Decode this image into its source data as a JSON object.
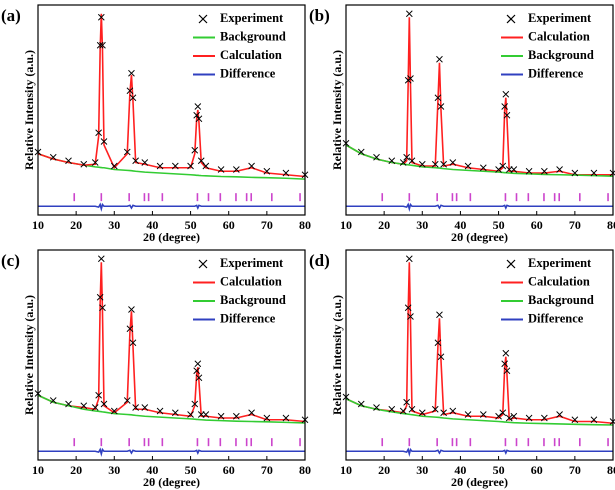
{
  "chart_data": [
    {
      "type": "line",
      "label": "(a)",
      "xlabel": "2θ (degree)",
      "ylabel": "Relative Intensity (a.u.)",
      "xlim": [
        10,
        80
      ],
      "xticks": [
        10,
        20,
        30,
        40,
        50,
        60,
        70,
        80
      ],
      "ylim": [
        -15,
        105
      ],
      "legend": "upper right",
      "x": [
        10,
        14,
        18,
        22,
        25,
        25.9,
        26.3,
        26.6,
        26.9,
        27.3,
        30,
        33.4,
        34.1,
        34.5,
        34.9,
        35.6,
        38,
        42,
        46,
        50,
        51.1,
        51.6,
        51.9,
        52.2,
        52.8,
        54,
        58,
        62,
        66,
        70,
        75,
        80
      ],
      "series": [
        {
          "name": "Experiment",
          "color": "#000000",
          "marker": "x",
          "values": [
            21,
            18,
            16,
            14,
            15,
            32,
            82,
            98,
            82,
            27,
            13,
            21,
            56,
            66,
            52,
            16,
            15,
            13,
            13,
            13,
            22,
            42,
            47,
            40,
            16,
            13,
            11,
            11,
            13,
            10,
            9,
            8
          ]
        },
        {
          "name": "Background",
          "color": "#33cc33",
          "values": [
            20,
            17,
            15,
            13.5,
            12.5,
            12.3,
            12.2,
            12.1,
            12,
            12,
            11,
            10.5,
            10.4,
            10.3,
            10.2,
            10,
            9.5,
            9,
            8.5,
            8,
            7.8,
            7.7,
            7.7,
            7.6,
            7.5,
            7.4,
            7,
            6.8,
            6.5,
            6.3,
            6,
            5.5
          ]
        },
        {
          "name": "Calculation",
          "color": "#ff2020",
          "values": [
            20,
            17,
            15,
            13.5,
            14,
            30,
            80,
            100,
            80,
            25,
            12,
            20,
            55,
            65,
            50,
            15,
            14,
            12,
            12,
            12,
            20,
            40,
            45,
            38,
            15,
            12,
            10,
            10,
            12,
            9,
            8,
            7
          ]
        },
        {
          "name": "Difference",
          "color": "#3040c0",
          "values": [
            -10,
            -10,
            -10,
            -10,
            -10,
            -10.5,
            -9,
            -11.5,
            -9,
            -10,
            -10,
            -10,
            -9.5,
            -11,
            -9.5,
            -10,
            -10,
            -10,
            -10,
            -10,
            -10,
            -9.5,
            -11,
            -9.5,
            -10,
            -10,
            -10,
            -10,
            -10,
            -10,
            -10,
            -10
          ]
        }
      ],
      "reflections": [
        19.5,
        26.6,
        33.9,
        37.9,
        39.0,
        42.6,
        51.8,
        54.7,
        57.8,
        61.9,
        64.7,
        65.9,
        71.3,
        78.7
      ],
      "reflection_color": "#cc44cc"
    },
    {
      "type": "line",
      "label": "(b)",
      "xlabel": "2θ (degree)",
      "ylabel": "Relative Intensity (a.u.)",
      "xlim": [
        10,
        80
      ],
      "xticks": [
        10,
        20,
        30,
        40,
        50,
        60,
        70,
        80
      ],
      "ylim": [
        -15,
        105
      ],
      "legend": "upper right",
      "x": [
        10,
        14,
        18,
        22,
        25,
        25.9,
        26.3,
        26.6,
        26.9,
        27.3,
        30,
        33.4,
        34.1,
        34.5,
        34.9,
        35.6,
        38,
        42,
        46,
        50,
        51.1,
        51.6,
        51.9,
        52.2,
        52.8,
        54,
        58,
        62,
        66,
        70,
        75,
        80
      ],
      "series": [
        {
          "name": "Experiment",
          "color": "#000000",
          "marker": "x",
          "values": [
            26,
            21,
            18,
            16,
            15,
            18,
            62,
            100,
            63,
            16,
            14,
            14,
            52,
            74,
            47,
            14,
            15,
            13,
            12,
            11,
            13,
            47,
            54,
            42,
            11,
            11,
            10,
            10,
            11,
            9,
            9,
            9
          ]
        },
        {
          "name": "Calculation",
          "color": "#ff2020",
          "values": [
            25,
            20,
            17,
            15,
            14,
            16,
            60,
            98,
            60,
            15,
            13,
            13,
            50,
            72,
            45,
            13,
            14,
            12,
            11,
            10,
            12,
            45,
            52,
            40,
            10,
            10,
            9,
            9,
            10,
            8,
            8,
            8
          ]
        },
        {
          "name": "Background",
          "color": "#33cc33",
          "values": [
            25,
            20,
            17,
            15,
            14,
            13.8,
            13.7,
            13.6,
            13.5,
            13.4,
            12.5,
            12,
            11.9,
            11.8,
            11.7,
            11.5,
            11,
            10.5,
            10,
            9.5,
            9.3,
            9.2,
            9.2,
            9.1,
            9,
            8.8,
            8.5,
            8.2,
            8,
            7.8,
            7.5,
            7.2
          ]
        },
        {
          "name": "Difference",
          "color": "#3040c0",
          "values": [
            -10,
            -10,
            -10,
            -10,
            -10,
            -10.5,
            -9,
            -11.5,
            -9,
            -10,
            -10,
            -10,
            -9.5,
            -11,
            -9.5,
            -10,
            -10,
            -10,
            -10,
            -10,
            -10,
            -9.5,
            -11,
            -9.5,
            -10,
            -10,
            -10,
            -10,
            -10,
            -10,
            -10,
            -10
          ]
        }
      ],
      "reflections": [
        19.5,
        26.6,
        33.9,
        37.9,
        39.0,
        42.6,
        51.8,
        54.7,
        57.8,
        61.9,
        64.7,
        65.9,
        71.3,
        78.7
      ],
      "reflection_color": "#cc44cc"
    },
    {
      "type": "line",
      "label": "(c)",
      "xlabel": "2θ (degree)",
      "ylabel": "Relative Intensity (a.u.)",
      "xlim": [
        10,
        80
      ],
      "xticks": [
        10,
        20,
        30,
        40,
        50,
        60,
        70,
        80
      ],
      "ylim": [
        -15,
        105
      ],
      "legend": "upper right",
      "x": [
        10,
        14,
        18,
        22,
        25,
        25.9,
        26.3,
        26.6,
        26.9,
        27.3,
        30,
        33.4,
        34.1,
        34.5,
        34.9,
        35.6,
        38,
        42,
        46,
        50,
        51.1,
        51.6,
        51.9,
        52.2,
        52.8,
        54,
        58,
        62,
        66,
        70,
        75,
        80
      ],
      "series": [
        {
          "name": "Experiment",
          "color": "#000000",
          "marker": "x",
          "values": [
            23,
            19,
            17,
            16,
            15,
            22,
            78,
            100,
            72,
            17,
            13,
            19,
            60,
            71,
            52,
            15,
            15,
            13,
            12,
            11,
            17,
            36,
            40,
            32,
            11,
            11,
            10,
            10,
            12,
            9,
            9,
            8
          ]
        },
        {
          "name": "Calculation",
          "color": "#ff2020",
          "values": [
            22,
            18,
            16,
            15,
            14,
            20,
            75,
            98,
            70,
            16,
            12,
            18,
            58,
            70,
            50,
            14,
            14,
            12,
            11,
            10,
            16,
            34,
            38,
            30,
            10,
            10,
            9,
            9,
            11,
            8,
            8,
            7
          ]
        },
        {
          "name": "Background",
          "color": "#33cc33",
          "values": [
            22,
            18,
            16,
            14,
            13,
            12.8,
            12.7,
            12.6,
            12.5,
            12.4,
            11.5,
            11,
            10.9,
            10.8,
            10.7,
            10.5,
            10,
            9.5,
            9,
            8.5,
            8.3,
            8.2,
            8.2,
            8.1,
            8,
            7.8,
            7.5,
            7.2,
            7,
            6.8,
            6.5,
            6.2
          ]
        },
        {
          "name": "Difference",
          "color": "#3040c0",
          "values": [
            -10,
            -10,
            -10,
            -10,
            -10,
            -10.5,
            -9,
            -11.5,
            -9,
            -10,
            -10,
            -10,
            -9.5,
            -11,
            -9.5,
            -10,
            -10,
            -10,
            -10,
            -10,
            -10,
            -9.5,
            -11,
            -9.5,
            -10,
            -10,
            -10,
            -10,
            -10,
            -10,
            -10,
            -10
          ]
        }
      ],
      "reflections": [
        19.5,
        26.6,
        33.9,
        37.9,
        39.0,
        42.6,
        51.8,
        54.7,
        57.8,
        61.9,
        64.7,
        65.9,
        71.3,
        78.7
      ],
      "reflection_color": "#cc44cc"
    },
    {
      "type": "line",
      "label": "(d)",
      "xlabel": "2θ (degree)",
      "ylabel": "Relative Intensity (a.u.)",
      "xlim": [
        10,
        80
      ],
      "xticks": [
        10,
        20,
        30,
        40,
        50,
        60,
        70,
        80
      ],
      "ylim": [
        -15,
        105
      ],
      "legend": "upper right",
      "x": [
        10,
        14,
        18,
        22,
        25,
        25.9,
        26.3,
        26.6,
        26.9,
        27.3,
        30,
        33.4,
        34.1,
        34.5,
        34.9,
        35.6,
        38,
        42,
        46,
        50,
        51.1,
        51.6,
        51.9,
        52.2,
        52.8,
        54,
        58,
        62,
        66,
        70,
        75,
        80
      ],
      "series": [
        {
          "name": "Experiment",
          "color": "#000000",
          "marker": "x",
          "values": [
            21,
            17,
            15,
            14,
            13,
            18,
            72,
            100,
            67,
            14,
            12,
            14,
            52,
            68,
            44,
            12,
            13,
            11,
            11,
            10,
            12,
            40,
            46,
            36,
            9,
            10,
            9,
            9,
            11,
            8,
            8,
            7
          ]
        },
        {
          "name": "Calculation",
          "color": "#ff2020",
          "values": [
            20,
            16,
            14,
            13,
            12,
            16,
            70,
            98,
            65,
            13,
            11,
            13,
            50,
            66,
            42,
            11,
            12,
            10,
            10,
            9,
            11,
            38,
            44,
            34,
            8,
            9,
            8,
            8,
            10,
            7,
            7,
            6
          ]
        },
        {
          "name": "Background",
          "color": "#33cc33",
          "values": [
            20,
            16,
            14,
            12.5,
            11.5,
            11.3,
            11.2,
            11.1,
            11,
            10.9,
            10,
            9.5,
            9.4,
            9.3,
            9.2,
            9,
            8.5,
            8,
            7.5,
            7,
            6.8,
            6.7,
            6.7,
            6.6,
            6.5,
            6.3,
            6,
            5.8,
            5.6,
            5.4,
            5.2,
            5
          ]
        },
        {
          "name": "Difference",
          "color": "#3040c0",
          "values": [
            -10,
            -10,
            -10,
            -10,
            -10,
            -10.5,
            -9,
            -11.5,
            -9,
            -10,
            -10,
            -10,
            -9.5,
            -11,
            -9.5,
            -10,
            -10,
            -10,
            -10,
            -10,
            -10,
            -9.5,
            -11,
            -9.5,
            -10,
            -10,
            -10,
            -10,
            -10,
            -10,
            -10,
            -10
          ]
        }
      ],
      "reflections": [
        19.5,
        26.6,
        33.9,
        37.9,
        39.0,
        42.6,
        51.8,
        54.7,
        57.8,
        61.9,
        64.7,
        65.9,
        71.3,
        78.7
      ],
      "reflection_color": "#cc44cc"
    }
  ]
}
